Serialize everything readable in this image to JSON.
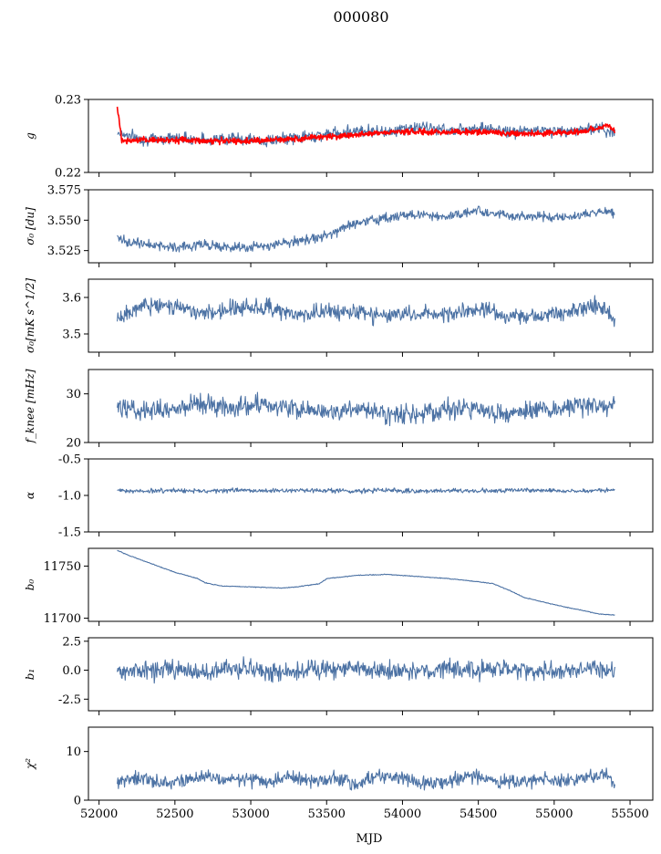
{
  "figure": {
    "title": "000080",
    "xlabel": "MJD",
    "xlim": [
      51930,
      55650
    ],
    "xticks": [
      52000,
      52500,
      53000,
      53500,
      54000,
      54500,
      55000,
      55500
    ]
  },
  "chart_data": [
    {
      "type": "line",
      "ylabel": "g",
      "ylim": [
        0.22,
        0.23
      ],
      "yticks": [
        0.22,
        0.23
      ],
      "series": [
        {
          "color": "#4c72a4",
          "x": [
            52120,
            52300,
            52500,
            52700,
            52900,
            53100,
            53300,
            53500,
            53700,
            53900,
            54100,
            54300,
            54500,
            54700,
            54900,
            55100,
            55300,
            55400
          ],
          "y": [
            0.2255,
            0.2245,
            0.2248,
            0.2245,
            0.2247,
            0.2243,
            0.2248,
            0.2252,
            0.2258,
            0.2256,
            0.2262,
            0.2258,
            0.2262,
            0.2255,
            0.2258,
            0.2256,
            0.2262,
            0.2252
          ]
        },
        {
          "color": "#ff0000",
          "x": [
            52120,
            52150,
            52200,
            52400,
            52600,
            52800,
            53000,
            53200,
            53400,
            53600,
            53800,
            54000,
            54200,
            54400,
            54600,
            54800,
            55000,
            55200,
            55350,
            55400
          ],
          "y": [
            0.229,
            0.2245,
            0.2243,
            0.2245,
            0.2244,
            0.2243,
            0.2243,
            0.2245,
            0.2248,
            0.225,
            0.2254,
            0.2256,
            0.2255,
            0.2256,
            0.2255,
            0.2253,
            0.2254,
            0.2256,
            0.2265,
            0.2255
          ]
        }
      ]
    },
    {
      "type": "line",
      "ylabel": "σ₀ [du]",
      "ylim": [
        3.515,
        3.575
      ],
      "yticks": [
        3.525,
        3.55,
        3.575
      ],
      "series": [
        {
          "color": "#4c72a4",
          "x": [
            52120,
            52300,
            52500,
            52700,
            52900,
            53100,
            53300,
            53500,
            53700,
            53900,
            54100,
            54300,
            54500,
            54700,
            54900,
            55100,
            55300,
            55400
          ],
          "y": [
            3.535,
            3.53,
            3.528,
            3.53,
            3.527,
            3.528,
            3.533,
            3.537,
            3.548,
            3.552,
            3.555,
            3.553,
            3.558,
            3.553,
            3.553,
            3.552,
            3.557,
            3.556
          ]
        }
      ]
    },
    {
      "type": "line",
      "ylabel": "σ₀[mK s^1/2]",
      "ylim": [
        3.45,
        3.65
      ],
      "yticks": [
        3.5,
        3.6
      ],
      "series": [
        {
          "color": "#4c72a4",
          "x": [
            52120,
            52300,
            52500,
            52700,
            52900,
            53100,
            53300,
            53500,
            53700,
            53900,
            54100,
            54300,
            54500,
            54700,
            54900,
            55100,
            55300,
            55400
          ],
          "y": [
            3.54,
            3.58,
            3.575,
            3.56,
            3.57,
            3.575,
            3.55,
            3.565,
            3.56,
            3.55,
            3.56,
            3.55,
            3.57,
            3.55,
            3.545,
            3.56,
            3.58,
            3.545
          ]
        }
      ]
    },
    {
      "type": "line",
      "ylabel": "f_knee [mHz]",
      "ylim": [
        20,
        35
      ],
      "yticks": [
        20,
        30
      ],
      "series": [
        {
          "color": "#4c72a4",
          "x": [
            52120,
            52300,
            52500,
            52700,
            52900,
            53100,
            53300,
            53500,
            53700,
            53900,
            54100,
            54300,
            54500,
            54700,
            54900,
            55100,
            55300,
            55400
          ],
          "y": [
            27,
            26.5,
            27,
            28,
            27,
            28,
            27,
            26,
            27,
            25.5,
            26,
            27,
            27,
            26,
            27,
            27,
            27.5,
            28
          ]
        }
      ]
    },
    {
      "type": "line",
      "ylabel": "α",
      "ylim": [
        -1.5,
        -0.5
      ],
      "yticks": [
        -1.5,
        -1.0,
        -0.5
      ],
      "series": [
        {
          "color": "#4c72a4",
          "x": [
            52120,
            52300,
            52500,
            52700,
            52900,
            53100,
            53300,
            53500,
            53700,
            53900,
            54100,
            54300,
            54500,
            54700,
            54900,
            55100,
            55300,
            55400
          ],
          "y": [
            -0.93,
            -0.94,
            -0.93,
            -0.94,
            -0.93,
            -0.94,
            -0.93,
            -0.93,
            -0.94,
            -0.93,
            -0.94,
            -0.93,
            -0.94,
            -0.93,
            -0.93,
            -0.94,
            -0.93,
            -0.93
          ]
        }
      ]
    },
    {
      "type": "line",
      "ylabel": "b₀",
      "ylim": [
        11697,
        11767
      ],
      "yticks": [
        11700,
        11750
      ],
      "series": [
        {
          "color": "#4c72a4",
          "x": [
            52120,
            52200,
            52350,
            52500,
            52650,
            52700,
            52800,
            53000,
            53200,
            53300,
            53450,
            53500,
            53700,
            53900,
            54100,
            54300,
            54500,
            54600,
            54700,
            54800,
            55000,
            55200,
            55300,
            55400
          ],
          "y": [
            11765,
            11760,
            11752,
            11744,
            11738,
            11734,
            11731,
            11730,
            11729,
            11730,
            11733,
            11738,
            11741,
            11742,
            11740,
            11738,
            11735,
            11733,
            11727,
            11720,
            11713,
            11707,
            11704,
            11703
          ]
        }
      ]
    },
    {
      "type": "line",
      "ylabel": "b₁",
      "ylim": [
        -3.5,
        2.8
      ],
      "yticks": [
        -2.5,
        0.0,
        2.5
      ],
      "series": [
        {
          "color": "#4c72a4",
          "x": [
            52120,
            52300,
            52500,
            52700,
            52900,
            53100,
            53300,
            53500,
            53700,
            53900,
            54100,
            54300,
            54500,
            54700,
            54900,
            55100,
            55300,
            55400
          ],
          "y": [
            -0.2,
            0.1,
            0.0,
            -0.1,
            0.2,
            0.0,
            -0.1,
            0.1,
            0.2,
            0.0,
            -0.1,
            0.1,
            0.0,
            0.1,
            -0.1,
            0.0,
            0.2,
            0.0
          ]
        }
      ]
    },
    {
      "type": "line",
      "ylabel": "χ²",
      "ylim": [
        0,
        15
      ],
      "yticks": [
        0,
        10
      ],
      "series": [
        {
          "color": "#4c72a4",
          "x": [
            52120,
            52250,
            52400,
            52550,
            52700,
            52800,
            52950,
            53100,
            53250,
            53400,
            53550,
            53700,
            53850,
            54000,
            54150,
            54300,
            54450,
            54600,
            54750,
            54900,
            55050,
            55200,
            55350,
            55400
          ],
          "y": [
            3.5,
            4.5,
            3.5,
            4.0,
            5.0,
            4.0,
            4.5,
            3.5,
            5.0,
            4.0,
            4.5,
            3.5,
            5.0,
            4.5,
            3.5,
            4.0,
            5.0,
            4.0,
            3.5,
            4.5,
            4.0,
            4.5,
            5.5,
            3.0
          ]
        }
      ]
    }
  ]
}
